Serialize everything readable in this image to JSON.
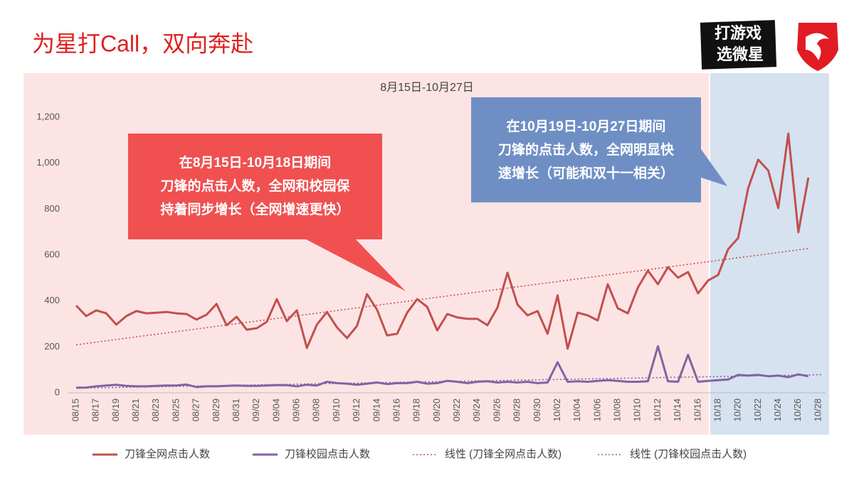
{
  "page_title": "为星打Call，双向奔赴",
  "logo": {
    "line1": "打游戏",
    "line2": "选微星"
  },
  "chart_data": {
    "type": "line",
    "title": "8月15日-10月27日",
    "categories": [
      "08/15",
      null,
      "08/17",
      null,
      "08/19",
      null,
      "08/21",
      null,
      "08/23",
      null,
      "08/25",
      null,
      "08/27",
      null,
      "08/29",
      null,
      "08/31",
      null,
      "09/02",
      null,
      "09/04",
      null,
      "09/06",
      null,
      "09/08",
      null,
      "09/10",
      null,
      "09/12",
      null,
      "09/14",
      null,
      "09/16",
      null,
      "09/18",
      null,
      "09/20",
      null,
      "09/22",
      null,
      "09/24",
      null,
      "09/26",
      null,
      "09/28",
      null,
      "09/30",
      null,
      "10/02",
      null,
      "10/04",
      null,
      "10/06",
      null,
      "10/08",
      null,
      "10/10",
      null,
      "10/12",
      null,
      "10/14",
      null,
      "10/16",
      null,
      "10/18",
      null,
      "10/20",
      null,
      "10/22",
      null,
      "10/24",
      null,
      "10/26",
      null,
      "10/28"
    ],
    "series": [
      {
        "name": "刀锋全网点击人数",
        "color": "#c0504d",
        "trendline": "线性 (刀锋全网点击人数)",
        "values": [
          380,
          334,
          359,
          346,
          297,
          334,
          356,
          346,
          349,
          352,
          346,
          343,
          319,
          340,
          387,
          294,
          331,
          275,
          281,
          309,
          408,
          312,
          359,
          195,
          297,
          352,
          285,
          238,
          291,
          430,
          362,
          250,
          257,
          349,
          408,
          374,
          272,
          343,
          328,
          322,
          322,
          294,
          371,
          523,
          384,
          337,
          356,
          257,
          424,
          192,
          349,
          337,
          315,
          473,
          368,
          346,
          458,
          532,
          473,
          547,
          501,
          526,
          433,
          489,
          513,
          625,
          674,
          891,
          1015,
          968,
          804,
          1129,
          699,
          937,
          null
        ]
      },
      {
        "name": "刀锋校园点击人数",
        "color": "#8064a2",
        "trendline": "线性 (刀锋校园点击人数)",
        "values": [
          22,
          23,
          28,
          32,
          35,
          30,
          28,
          28,
          30,
          32,
          32,
          36,
          25,
          28,
          28,
          30,
          32,
          30,
          30,
          32,
          33,
          33,
          28,
          35,
          32,
          48,
          42,
          40,
          35,
          40,
          45,
          38,
          42,
          42,
          48,
          40,
          42,
          52,
          48,
          42,
          48,
          50,
          45,
          48,
          45,
          48,
          42,
          45,
          133,
          48,
          50,
          48,
          52,
          55,
          52,
          48,
          48,
          50,
          203,
          50,
          48,
          165,
          48,
          52,
          55,
          58,
          78,
          75,
          78,
          72,
          75,
          68,
          80,
          72,
          null
        ]
      }
    ],
    "ylim": [
      0,
      1200
    ],
    "yticks": [
      0,
      200,
      400,
      600,
      800,
      {
        "value": 1000,
        "label": "1,000"
      },
      {
        "value": 1200,
        "label": "1,200"
      }
    ],
    "grid": false,
    "legend": "bottom",
    "annotations": [
      {
        "lines": [
          "在8月15日-10月18日期间",
          "刀锋的点击人数，全网和校园保",
          "持着同步增长（全网增速更快）"
        ],
        "color": "#f05050"
      },
      {
        "lines": [
          "在10月19日-10月27日期间",
          "刀锋的点击人数，全网明显快",
          "速增长（可能和双十一相关）"
        ],
        "color": "#6f8fc4"
      }
    ]
  }
}
